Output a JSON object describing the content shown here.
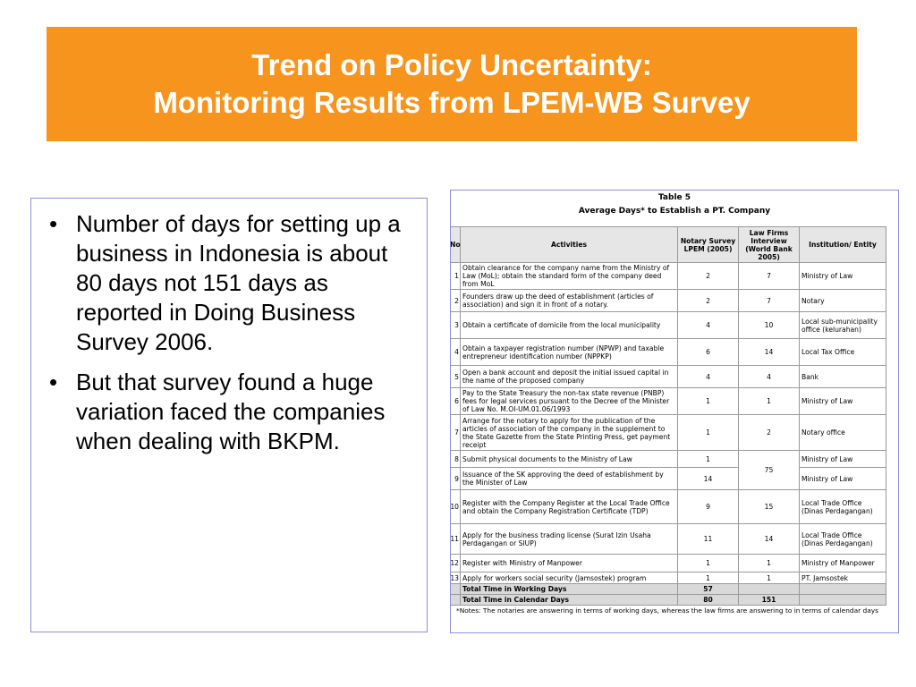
{
  "title": {
    "line1": "Trend on Policy Uncertainty:",
    "line2": "Monitoring Results from LPEM-WB Survey"
  },
  "bullets": [
    "Number of days for setting up a business in Indonesia is about 80 days not 151 days as reported in Doing Business Survey 2006.",
    "But that survey found a huge variation faced the companies when dealing with BKPM."
  ],
  "table": {
    "caption": "Table 5",
    "subtitle": "Average Days* to Establish a PT. Company",
    "headers": {
      "no": "No",
      "activities": "Activities",
      "notary": "Notary Survey LPEM (2005)",
      "lawfirm": "Law Firms Interview (World Bank 2005)",
      "institution": "Institution/ Entity"
    },
    "rows": [
      {
        "no": "1",
        "activity": "Obtain clearance for the company name from the Ministry of Law (MoL); obtain the standard form of the company deed from MoL",
        "notary": "2",
        "law": "7",
        "inst": "Ministry of Law"
      },
      {
        "no": "2",
        "activity": "Founders draw up the deed of establishment (articles of association) and sign it in front of a notary.",
        "notary": "2",
        "law": "7",
        "inst": "Notary"
      },
      {
        "no": "3",
        "activity": "Obtain a certificate of domicile from the local municipality",
        "notary": "4",
        "law": "10",
        "inst": "Local sub-municipality office (kelurahan)"
      },
      {
        "no": "4",
        "activity": "Obtain a taxpayer registration number (NPWP) and taxable entrepreneur identification number (NPPKP)",
        "notary": "6",
        "law": "14",
        "inst": "Local Tax Office"
      },
      {
        "no": "5",
        "activity": "Open a bank account and deposit the initial issued capital in the name of the proposed company",
        "notary": "4",
        "law": "4",
        "inst": "Bank"
      },
      {
        "no": "6",
        "activity": "Pay to the State Treasury the non-tax state revenue (PNBP) fees for legal services pursuant to the Decree of the Minister of Law No. M.OI-UM.01.06/1993",
        "notary": "1",
        "law": "1",
        "inst": "Ministry of Law"
      },
      {
        "no": "7",
        "activity": "Arrange for the notary to apply for the publication of the articles of association of the company in the supplement to the State Gazette from the State Printing Press, get payment receipt",
        "notary": "1",
        "law": "2",
        "inst": "Notary office"
      },
      {
        "no": "8",
        "activity": "Submit physical documents to the Ministry of Law",
        "notary": "1",
        "law": "75",
        "inst": "Ministry of Law"
      },
      {
        "no": "9",
        "activity": "Issuance of the SK approving the deed of establishment by the Minister of Law",
        "notary": "14",
        "law": "",
        "inst": "Ministry of Law"
      },
      {
        "no": "10",
        "activity": "Register with the Company Register at the Local Trade Office and obtain the Company Registration Certificate (TDP)",
        "notary": "9",
        "law": "15",
        "inst": "Local Trade Office (Dinas Perdagangan)"
      },
      {
        "no": "11",
        "activity": "Apply for the business trading license (Surat Izin Usaha Perdagangan or SIUP)",
        "notary": "11",
        "law": "14",
        "inst": "Local Trade Office (Dinas Perdagangan)"
      },
      {
        "no": "12",
        "activity": "Register with Ministry of Manpower",
        "notary": "1",
        "law": "1",
        "inst": "Ministry of Manpower"
      },
      {
        "no": "13",
        "activity": "Apply for workers social security (Jamsostek) program",
        "notary": "1",
        "law": "1",
        "inst": "PT. Jamsostek"
      }
    ],
    "totals": [
      {
        "label": "Total Time in Working Days",
        "notary": "57",
        "law": ""
      },
      {
        "label": "Total Time in Calendar Days",
        "notary": "80",
        "law": "151"
      }
    ],
    "note": "*Notes: The notaries are answering in terms of working days, whereas the law firms are answering to in terms of calendar days"
  }
}
